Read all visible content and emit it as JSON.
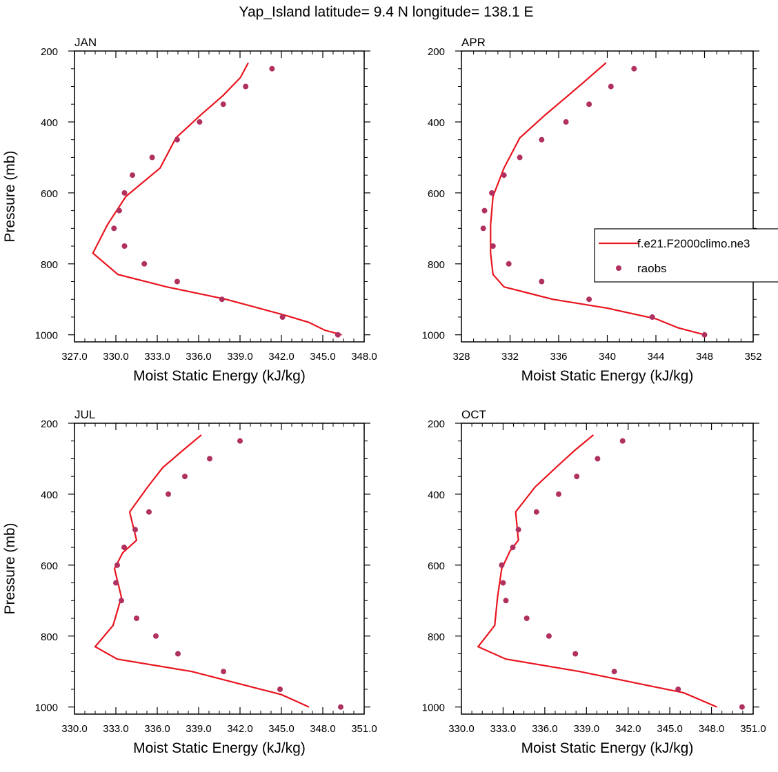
{
  "figure_title": "Yap_Island  latitude= 9.4 N longitude= 138.1 E",
  "colors": {
    "model": "#e8141e",
    "obs": "#b03060",
    "axis": "#000000"
  },
  "legend": {
    "placement": "right-middle (on APR panel, clipped at figure edge)",
    "entries": [
      {
        "label": "f.e21.F2000climo.ne3",
        "kind": "line"
      },
      {
        "label": "raobs",
        "kind": "marker"
      }
    ]
  },
  "chart_data": [
    {
      "type": "line",
      "title": "JAN",
      "xlabel": "Moist Static Energy (kJ/kg)",
      "ylabel": "Pressure (mb)",
      "xlim": [
        327,
        349
      ],
      "ylim": [
        200,
        1020
      ],
      "y_inverted": true,
      "xticks": [
        "327.0",
        "330.0",
        "333.0",
        "336.0",
        "339.0",
        "342.0",
        "345.0",
        "348.0"
      ],
      "yticks": [
        "200",
        "400",
        "600",
        "800",
        "1000"
      ],
      "series": [
        {
          "name": "f.e21.F2000climo.ne3",
          "kind": "line",
          "x": [
            340.2,
            339.6,
            338.3,
            336.6,
            334.7,
            333.5,
            330.9,
            329.5,
            328.4,
            330.3,
            334.0,
            338.5,
            343.0,
            344.8,
            346.0,
            347.3
          ],
          "y": [
            233,
            275,
            325,
            380,
            445,
            530,
            610,
            690,
            770,
            830,
            865,
            900,
            945,
            965,
            987,
            1000
          ]
        },
        {
          "name": "raobs",
          "kind": "markers",
          "x": [
            342.0,
            340.0,
            338.3,
            336.5,
            334.8,
            332.9,
            331.4,
            330.8,
            330.4,
            330.0,
            330.8,
            332.3,
            334.8,
            338.2,
            342.8,
            347.0
          ],
          "y": [
            250,
            300,
            350,
            400,
            450,
            500,
            550,
            600,
            650,
            700,
            750,
            800,
            850,
            900,
            950,
            1000
          ]
        }
      ]
    },
    {
      "type": "line",
      "title": "APR",
      "xlabel": "Moist Static Energy (kJ/kg)",
      "ylabel": "",
      "xlim": [
        328,
        352
      ],
      "ylim": [
        200,
        1020
      ],
      "y_inverted": true,
      "xticks": [
        "328",
        "332",
        "336",
        "340",
        "344",
        "348",
        "352"
      ],
      "yticks": [
        "200",
        "400",
        "600",
        "800",
        "1000"
      ],
      "series": [
        {
          "name": "f.e21.F2000climo.ne3",
          "kind": "line",
          "x": [
            339.9,
            338.5,
            336.8,
            334.9,
            332.8,
            331.5,
            330.6,
            330.4,
            330.4,
            330.6,
            331.5,
            335.5,
            340.0,
            344.0,
            345.8,
            348.0
          ],
          "y": [
            233,
            275,
            325,
            380,
            445,
            530,
            610,
            690,
            770,
            830,
            865,
            900,
            925,
            955,
            980,
            1000
          ]
        },
        {
          "name": "raobs",
          "kind": "markers",
          "x": [
            342.2,
            340.3,
            338.5,
            336.6,
            334.6,
            332.8,
            331.5,
            330.5,
            329.9,
            329.8,
            330.6,
            331.9,
            334.6,
            338.5,
            343.7,
            348.0
          ],
          "y": [
            250,
            300,
            350,
            400,
            450,
            500,
            550,
            600,
            650,
            700,
            750,
            800,
            850,
            900,
            950,
            1000
          ]
        }
      ]
    },
    {
      "type": "line",
      "title": "JUL",
      "xlabel": "Moist Static Energy (kJ/kg)",
      "ylabel": "Pressure (mb)",
      "xlim": [
        330,
        351
      ],
      "ylim": [
        200,
        1020
      ],
      "y_inverted": true,
      "xticks": [
        "330.0",
        "333.0",
        "336.0",
        "339.0",
        "342.0",
        "345.0",
        "348.0",
        "351.0"
      ],
      "yticks": [
        "200",
        "400",
        "600",
        "800",
        "1000"
      ],
      "series": [
        {
          "name": "f.e21.F2000climo.ne3",
          "kind": "line",
          "x": [
            339.2,
            337.9,
            336.4,
            335.3,
            334.0,
            334.5,
            333.5,
            332.9,
            333.4,
            332.8,
            331.5,
            333.1,
            338.5,
            343.0,
            345.0,
            347.0
          ],
          "y": [
            233,
            275,
            325,
            380,
            450,
            530,
            565,
            610,
            690,
            770,
            830,
            865,
            900,
            945,
            965,
            1000
          ]
        },
        {
          "name": "raobs",
          "kind": "markers",
          "x": [
            342.0,
            339.8,
            338.0,
            336.8,
            335.4,
            334.4,
            333.6,
            333.1,
            333.0,
            333.4,
            334.5,
            335.9,
            337.5,
            340.8,
            344.9,
            349.3
          ],
          "y": [
            250,
            300,
            350,
            400,
            450,
            500,
            550,
            600,
            650,
            700,
            750,
            800,
            850,
            900,
            950,
            1000
          ]
        }
      ]
    },
    {
      "type": "line",
      "title": "OCT",
      "xlabel": "Moist Static Energy (kJ/kg)",
      "ylabel": "",
      "xlim": [
        330,
        351
      ],
      "ylim": [
        200,
        1020
      ],
      "y_inverted": true,
      "xticks": [
        "330.0",
        "333.0",
        "336.0",
        "339.0",
        "342.0",
        "345.0",
        "348.0",
        "351.0"
      ],
      "yticks": [
        "200",
        "400",
        "600",
        "800",
        "1000"
      ],
      "series": [
        {
          "name": "f.e21.F2000climo.ne3",
          "kind": "line",
          "x": [
            339.5,
            338.2,
            336.8,
            335.3,
            333.9,
            334.1,
            333.5,
            332.9,
            332.6,
            332.4,
            331.2,
            333.2,
            338.5,
            343.5,
            346.0,
            348.4
          ],
          "y": [
            233,
            275,
            325,
            380,
            450,
            530,
            560,
            610,
            690,
            770,
            830,
            865,
            900,
            940,
            960,
            1000
          ]
        },
        {
          "name": "raobs",
          "kind": "markers",
          "x": [
            341.6,
            339.8,
            338.3,
            337.0,
            335.4,
            334.1,
            333.7,
            332.9,
            333.0,
            333.2,
            334.7,
            336.3,
            338.2,
            341.0,
            345.6,
            350.2
          ],
          "y": [
            250,
            300,
            350,
            400,
            450,
            500,
            550,
            600,
            650,
            700,
            750,
            800,
            850,
            900,
            950,
            1000
          ]
        }
      ]
    }
  ]
}
